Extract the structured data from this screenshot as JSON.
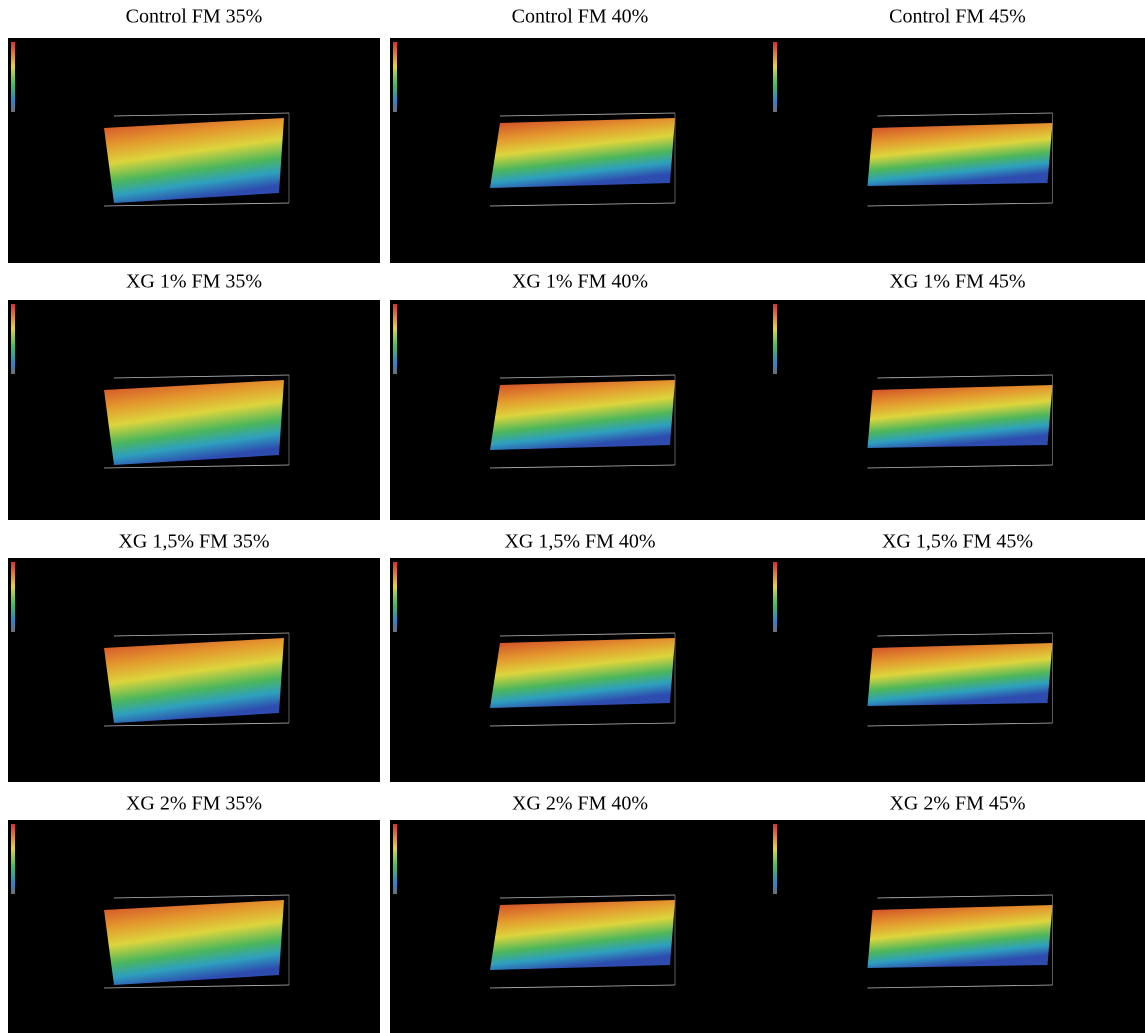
{
  "figure": {
    "panels": [
      {
        "title": "Control FM 35%"
      },
      {
        "title": "Control FM 40%"
      },
      {
        "title": "Control FM 45%"
      },
      {
        "title": "XG 1% FM 35%"
      },
      {
        "title": "XG 1% FM 40%"
      },
      {
        "title": "XG 1% FM 45%"
      },
      {
        "title": "XG 1,5% FM 35%"
      },
      {
        "title": "XG 1,5% FM 40%"
      },
      {
        "title": "XG 1,5% FM 45%"
      },
      {
        "title": "XG 2% FM 35%"
      },
      {
        "title": "XG 2% FM 40%"
      },
      {
        "title": "XG 2% FM 45%"
      }
    ]
  }
}
